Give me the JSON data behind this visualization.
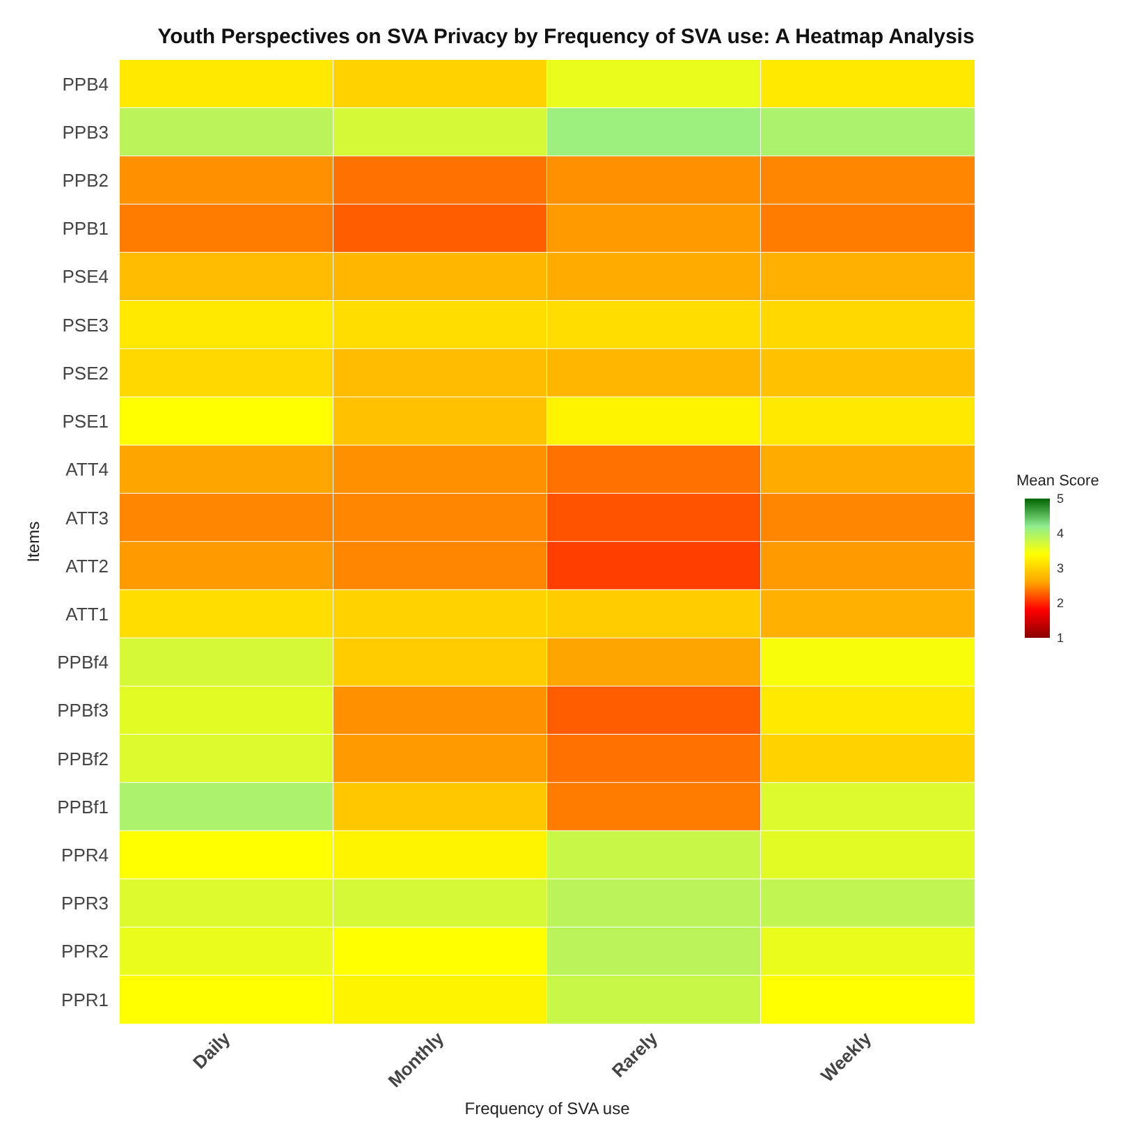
{
  "chart_data": {
    "type": "heatmap",
    "title": "Youth Perspectives on SVA Privacy by Frequency of SVA use: A Heatmap Analysis",
    "xlabel": "Frequency of SVA use",
    "ylabel": "Items",
    "clabel": "Mean Score",
    "categories": [
      "Daily",
      "Monthly",
      "Rarely",
      "Weekly"
    ],
    "y_categories": [
      "PPB4",
      "PPB3",
      "PPB2",
      "PPB1",
      "PSE4",
      "PSE3",
      "PSE2",
      "PSE1",
      "ATT4",
      "ATT3",
      "ATT2",
      "ATT1",
      "PPBf4",
      "PPBf3",
      "PPBf2",
      "PPBf1",
      "PPR4",
      "PPR3",
      "PPR2",
      "PPR1"
    ],
    "cells": [
      [
        3.2,
        3.0,
        3.55,
        3.2
      ],
      [
        3.9,
        3.7,
        4.1,
        4.0
      ],
      [
        2.5,
        2.35,
        2.5,
        2.45
      ],
      [
        2.4,
        2.25,
        2.55,
        2.4
      ],
      [
        2.8,
        2.75,
        2.65,
        2.7
      ],
      [
        3.2,
        3.1,
        3.1,
        3.05
      ],
      [
        3.05,
        2.8,
        2.75,
        2.85
      ],
      [
        3.4,
        2.85,
        3.3,
        3.2
      ],
      [
        2.6,
        2.5,
        2.35,
        2.65
      ],
      [
        2.45,
        2.45,
        2.2,
        2.45
      ],
      [
        2.55,
        2.45,
        2.1,
        2.55
      ],
      [
        3.1,
        3.0,
        2.95,
        2.7
      ],
      [
        3.7,
        2.95,
        2.6,
        3.45
      ],
      [
        3.6,
        2.5,
        2.25,
        3.2
      ],
      [
        3.65,
        2.55,
        2.35,
        3.0
      ],
      [
        4.0,
        2.9,
        2.4,
        3.65
      ],
      [
        3.4,
        3.3,
        3.8,
        3.6
      ],
      [
        3.65,
        3.7,
        3.9,
        3.85
      ],
      [
        3.55,
        3.4,
        3.9,
        3.55
      ],
      [
        3.4,
        3.3,
        3.8,
        3.4
      ]
    ],
    "clim": [
      1,
      5
    ],
    "cticks": [
      1,
      2,
      3,
      4,
      5
    ]
  }
}
